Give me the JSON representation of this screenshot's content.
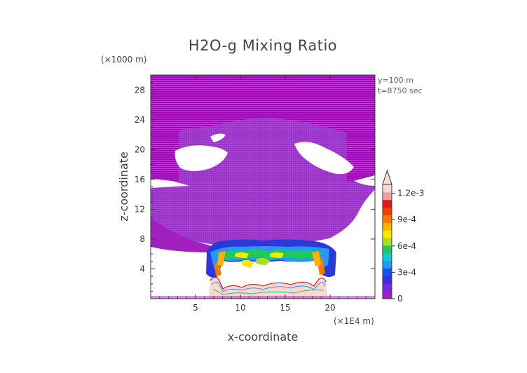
{
  "chart_data": {
    "type": "heatmap",
    "title": "H2O-g Mixing Ratio",
    "xlabel": "x-coordinate",
    "ylabel": "z-coordinate",
    "x_units": "(×1E4 m)",
    "y_units": "(×1000 m)",
    "xlim": [
      0,
      25
    ],
    "ylim": [
      0,
      30
    ],
    "x_ticks": [
      5,
      10,
      15,
      20
    ],
    "x_tick_labels": [
      "5",
      "10",
      "15",
      "20"
    ],
    "y_ticks": [
      4,
      8,
      12,
      16,
      20,
      24,
      28
    ],
    "y_tick_labels": [
      "4",
      "8",
      "12",
      "16",
      "20",
      "24",
      "28"
    ],
    "annotations": [
      "y=100 m",
      "t=8750 sec"
    ],
    "colorbar": {
      "min": 0,
      "max": 0.0013,
      "tick_values": [
        0,
        0.0003,
        0.0006,
        0.0009,
        0.0012
      ],
      "tick_labels": [
        "0",
        "3e-4",
        "6e-4",
        "9e-4",
        "1.2e-3"
      ],
      "colors": [
        "#a020c8",
        "#7a28d8",
        "#3a2ce0",
        "#1a50f0",
        "#2898f8",
        "#10c8d8",
        "#20c860",
        "#a8e020",
        "#f8e800",
        "#f8b400",
        "#f87800",
        "#f04000",
        "#e01818",
        "#f0a0a0",
        "#f8d8d0"
      ]
    }
  }
}
